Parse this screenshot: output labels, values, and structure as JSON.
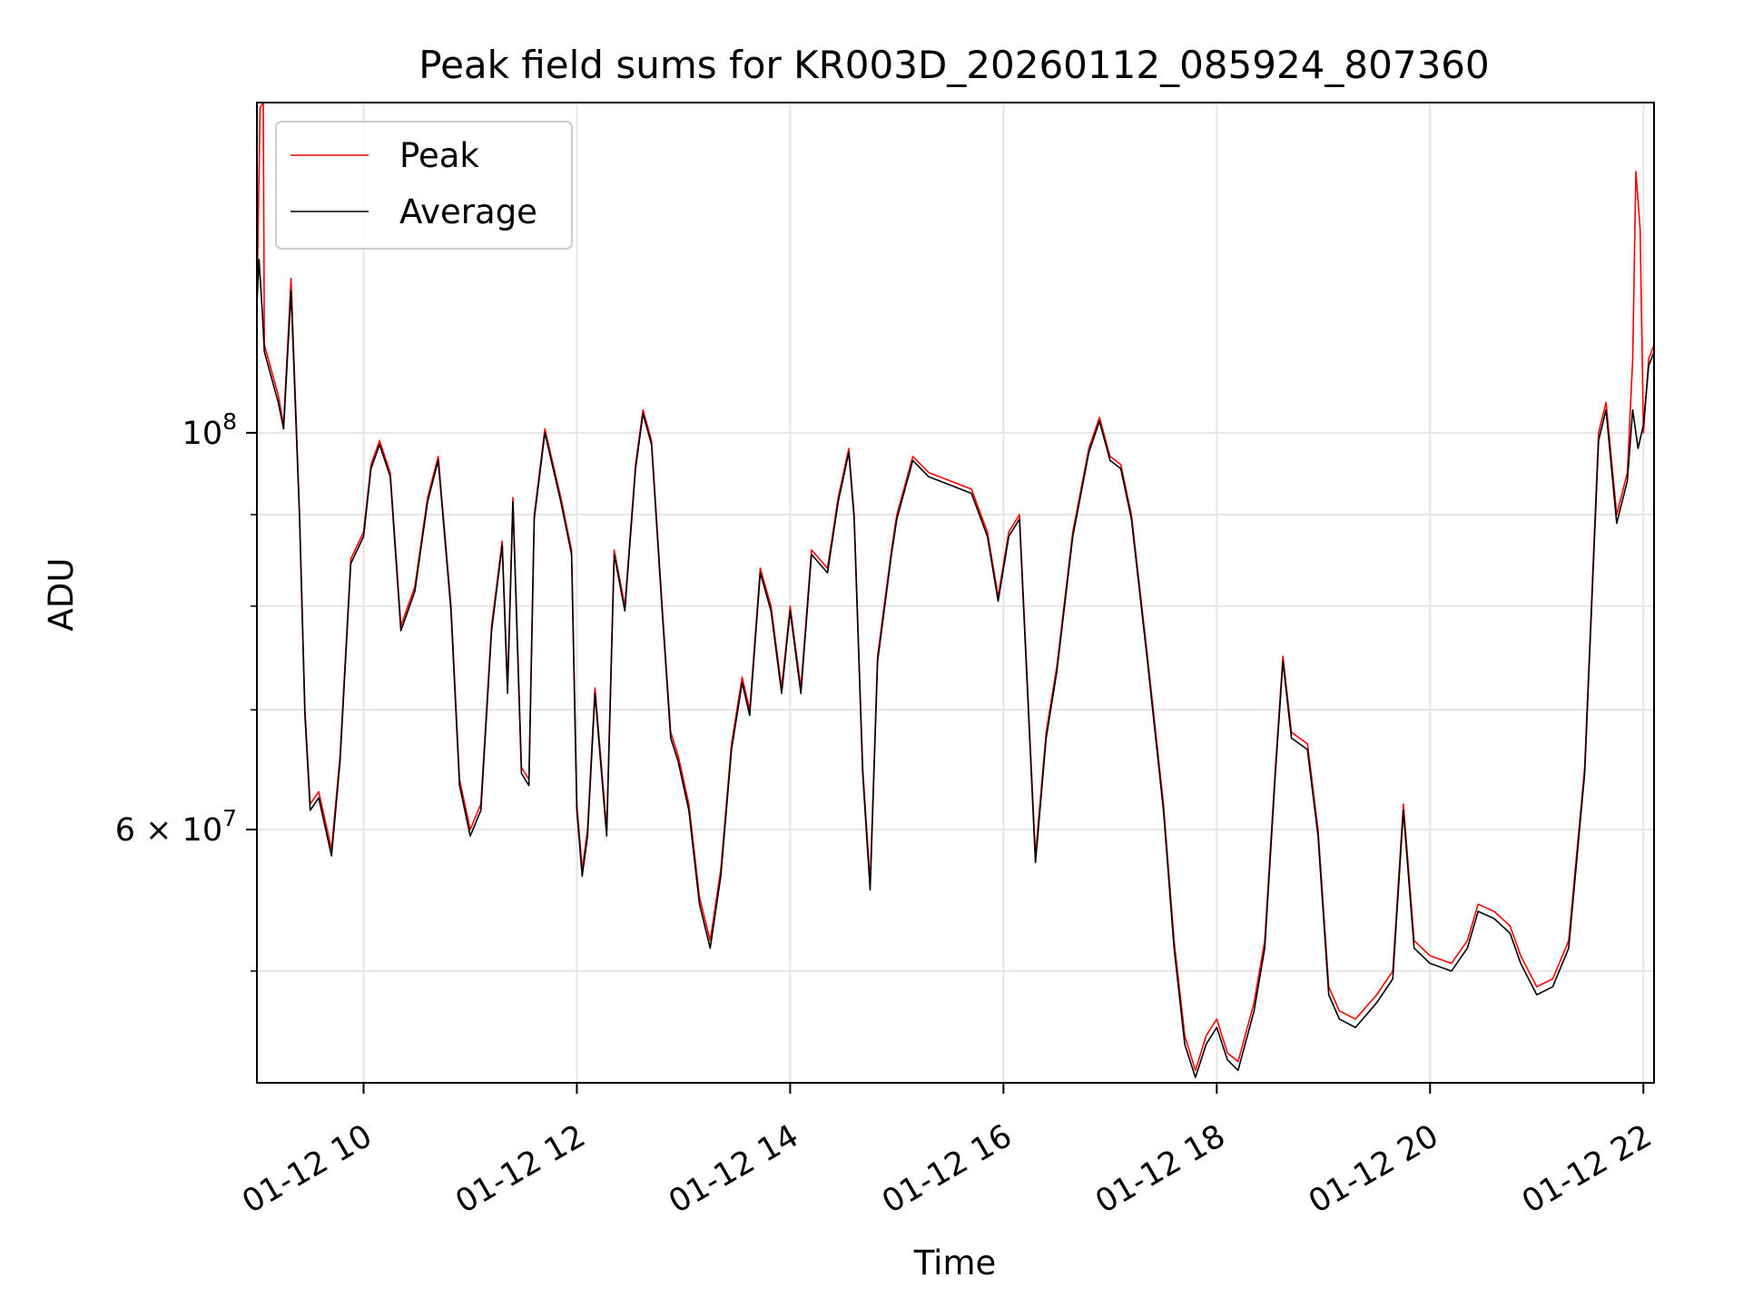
{
  "chart_data": {
    "type": "line",
    "title": "Peak field sums for KR003D_20260112_085924_807360",
    "xlabel": "Time",
    "ylabel": "ADU",
    "xlim_hours": [
      9.0,
      22.1
    ],
    "ylim": [
      43300000,
      153000000
    ],
    "yscale": "log",
    "grid": true,
    "legend_position": "upper-left",
    "x_ticks": [
      {
        "value": 10,
        "label": "01-12 10"
      },
      {
        "value": 12,
        "label": "01-12 12"
      },
      {
        "value": 14,
        "label": "01-12 14"
      },
      {
        "value": 16,
        "label": "01-12 16"
      },
      {
        "value": 18,
        "label": "01-12 18"
      },
      {
        "value": 20,
        "label": "01-12 20"
      },
      {
        "value": 22,
        "label": "01-12 22"
      }
    ],
    "y_major_ticks": [
      {
        "value": 100000000,
        "label_base": "10",
        "label_exp": "8"
      },
      {
        "value": 60000000,
        "label_mant": "6 × 10",
        "label_exp": "7"
      }
    ],
    "y_minor_ticks": [
      50000000,
      70000000,
      80000000,
      90000000
    ],
    "series": [
      {
        "name": "Peak",
        "color": "#ff0000",
        "points": [
          [
            9.0,
            118000000
          ],
          [
            9.03,
            152000000
          ],
          [
            9.06,
            153000000
          ],
          [
            9.07,
            112000000
          ],
          [
            9.2,
            105000000
          ],
          [
            9.25,
            101000000
          ],
          [
            9.32,
            122000000
          ],
          [
            9.4,
            90000000
          ],
          [
            9.45,
            70000000
          ],
          [
            9.5,
            62000000
          ],
          [
            9.58,
            63000000
          ],
          [
            9.7,
            58500000
          ],
          [
            9.78,
            66000000
          ],
          [
            9.88,
            85000000
          ],
          [
            10.0,
            88000000
          ],
          [
            10.07,
            96000000
          ],
          [
            10.15,
            99000000
          ],
          [
            10.25,
            95000000
          ],
          [
            10.35,
            78000000
          ],
          [
            10.48,
            82000000
          ],
          [
            10.6,
            92000000
          ],
          [
            10.7,
            97000000
          ],
          [
            10.82,
            80000000
          ],
          [
            10.9,
            64000000
          ],
          [
            11.0,
            60000000
          ],
          [
            11.1,
            62000000
          ],
          [
            11.2,
            78000000
          ],
          [
            11.3,
            87000000
          ],
          [
            11.35,
            72000000
          ],
          [
            11.4,
            92000000
          ],
          [
            11.48,
            65000000
          ],
          [
            11.55,
            64000000
          ],
          [
            11.6,
            90000000
          ],
          [
            11.7,
            100500000
          ],
          [
            11.85,
            92000000
          ],
          [
            11.95,
            86000000
          ],
          [
            12.0,
            62000000
          ],
          [
            12.05,
            57000000
          ],
          [
            12.1,
            60000000
          ],
          [
            12.17,
            72000000
          ],
          [
            12.28,
            60000000
          ],
          [
            12.35,
            86000000
          ],
          [
            12.45,
            80000000
          ],
          [
            12.55,
            96000000
          ],
          [
            12.62,
            103000000
          ],
          [
            12.7,
            99000000
          ],
          [
            12.8,
            80000000
          ],
          [
            12.88,
            68000000
          ],
          [
            12.95,
            66000000
          ],
          [
            13.05,
            62000000
          ],
          [
            13.15,
            55000000
          ],
          [
            13.25,
            52000000
          ],
          [
            13.35,
            57000000
          ],
          [
            13.45,
            67000000
          ],
          [
            13.55,
            73000000
          ],
          [
            13.62,
            70000000
          ],
          [
            13.72,
            84000000
          ],
          [
            13.82,
            80000000
          ],
          [
            13.92,
            72000000
          ],
          [
            14.0,
            80000000
          ],
          [
            14.1,
            72000000
          ],
          [
            14.2,
            86000000
          ],
          [
            14.35,
            84000000
          ],
          [
            14.45,
            92000000
          ],
          [
            14.55,
            98000000
          ],
          [
            14.6,
            90000000
          ],
          [
            14.68,
            65000000
          ],
          [
            14.75,
            56000000
          ],
          [
            14.82,
            75000000
          ],
          [
            14.95,
            86000000
          ],
          [
            15.0,
            90000000
          ],
          [
            15.15,
            97000000
          ],
          [
            15.3,
            95000000
          ],
          [
            15.5,
            94000000
          ],
          [
            15.7,
            93000000
          ],
          [
            15.85,
            88000000
          ],
          [
            15.95,
            81000000
          ],
          [
            16.05,
            88000000
          ],
          [
            16.15,
            90000000
          ],
          [
            16.3,
            58000000
          ],
          [
            16.4,
            68000000
          ],
          [
            16.5,
            74000000
          ],
          [
            16.65,
            88000000
          ],
          [
            16.8,
            98000000
          ],
          [
            16.9,
            102000000
          ],
          [
            17.0,
            97000000
          ],
          [
            17.1,
            96000000
          ],
          [
            17.2,
            90000000
          ],
          [
            17.35,
            75000000
          ],
          [
            17.5,
            62000000
          ],
          [
            17.6,
            52000000
          ],
          [
            17.7,
            46000000
          ],
          [
            17.8,
            44000000
          ],
          [
            17.9,
            46000000
          ],
          [
            18.0,
            47000000
          ],
          [
            18.1,
            45000000
          ],
          [
            18.2,
            44500000
          ],
          [
            18.35,
            48000000
          ],
          [
            18.45,
            52000000
          ],
          [
            18.55,
            65000000
          ],
          [
            18.62,
            75000000
          ],
          [
            18.7,
            68000000
          ],
          [
            18.85,
            67000000
          ],
          [
            18.95,
            60000000
          ],
          [
            19.05,
            49000000
          ],
          [
            19.15,
            47500000
          ],
          [
            19.3,
            47000000
          ],
          [
            19.5,
            48500000
          ],
          [
            19.65,
            50000000
          ],
          [
            19.75,
            62000000
          ],
          [
            19.85,
            52000000
          ],
          [
            20.0,
            51000000
          ],
          [
            20.2,
            50500000
          ],
          [
            20.35,
            52000000
          ],
          [
            20.45,
            54500000
          ],
          [
            20.6,
            54000000
          ],
          [
            20.75,
            53000000
          ],
          [
            20.85,
            51000000
          ],
          [
            21.0,
            49000000
          ],
          [
            21.15,
            49500000
          ],
          [
            21.3,
            52000000
          ],
          [
            21.45,
            65000000
          ],
          [
            21.58,
            100000000
          ],
          [
            21.65,
            104000000
          ],
          [
            21.75,
            90000000
          ],
          [
            21.85,
            95000000
          ],
          [
            21.9,
            110000000
          ],
          [
            21.93,
            140000000
          ],
          [
            21.97,
            130000000
          ],
          [
            22.0,
            100000000
          ],
          [
            22.05,
            110000000
          ],
          [
            22.1,
            112000000
          ]
        ]
      },
      {
        "name": "Average",
        "color": "#000000",
        "points": [
          [
            9.0,
            118000000
          ],
          [
            9.02,
            125000000
          ],
          [
            9.05,
            117000000
          ],
          [
            9.07,
            111000000
          ],
          [
            9.2,
            104000000
          ],
          [
            9.25,
            100500000
          ],
          [
            9.32,
            120000000
          ],
          [
            9.4,
            89500000
          ],
          [
            9.45,
            69500000
          ],
          [
            9.5,
            61500000
          ],
          [
            9.58,
            62500000
          ],
          [
            9.7,
            58000000
          ],
          [
            9.78,
            65500000
          ],
          [
            9.88,
            84500000
          ],
          [
            10.0,
            87500000
          ],
          [
            10.07,
            95500000
          ],
          [
            10.15,
            98500000
          ],
          [
            10.25,
            94500000
          ],
          [
            10.35,
            77500000
          ],
          [
            10.48,
            81500000
          ],
          [
            10.6,
            91500000
          ],
          [
            10.7,
            96500000
          ],
          [
            10.82,
            79500000
          ],
          [
            10.9,
            63500000
          ],
          [
            11.0,
            59500000
          ],
          [
            11.1,
            61500000
          ],
          [
            11.2,
            77500000
          ],
          [
            11.3,
            86500000
          ],
          [
            11.35,
            71500000
          ],
          [
            11.4,
            91500000
          ],
          [
            11.48,
            64500000
          ],
          [
            11.55,
            63500000
          ],
          [
            11.6,
            89500000
          ],
          [
            11.7,
            100000000
          ],
          [
            11.85,
            91500000
          ],
          [
            11.95,
            85500000
          ],
          [
            12.0,
            61500000
          ],
          [
            12.05,
            56500000
          ],
          [
            12.1,
            59500000
          ],
          [
            12.17,
            71500000
          ],
          [
            12.28,
            59500000
          ],
          [
            12.35,
            85500000
          ],
          [
            12.45,
            79500000
          ],
          [
            12.55,
            95500000
          ],
          [
            12.62,
            102500000
          ],
          [
            12.7,
            98500000
          ],
          [
            12.8,
            79500000
          ],
          [
            12.88,
            67500000
          ],
          [
            12.95,
            65500000
          ],
          [
            13.05,
            61500000
          ],
          [
            13.15,
            54500000
          ],
          [
            13.25,
            51500000
          ],
          [
            13.35,
            56500000
          ],
          [
            13.45,
            66500000
          ],
          [
            13.55,
            72500000
          ],
          [
            13.62,
            69500000
          ],
          [
            13.72,
            83500000
          ],
          [
            13.82,
            79500000
          ],
          [
            13.92,
            71500000
          ],
          [
            14.0,
            79500000
          ],
          [
            14.1,
            71500000
          ],
          [
            14.2,
            85500000
          ],
          [
            14.35,
            83500000
          ],
          [
            14.45,
            91500000
          ],
          [
            14.55,
            97500000
          ],
          [
            14.6,
            89500000
          ],
          [
            14.68,
            64500000
          ],
          [
            14.75,
            55500000
          ],
          [
            14.82,
            74500000
          ],
          [
            14.95,
            85500000
          ],
          [
            15.0,
            89500000
          ],
          [
            15.15,
            96500000
          ],
          [
            15.3,
            94500000
          ],
          [
            15.5,
            93500000
          ],
          [
            15.7,
            92500000
          ],
          [
            15.85,
            87500000
          ],
          [
            15.95,
            80500000
          ],
          [
            16.05,
            87500000
          ],
          [
            16.15,
            89500000
          ],
          [
            16.3,
            57500000
          ],
          [
            16.4,
            67500000
          ],
          [
            16.5,
            73500000
          ],
          [
            16.65,
            87500000
          ],
          [
            16.8,
            97500000
          ],
          [
            16.9,
            101500000
          ],
          [
            17.0,
            96500000
          ],
          [
            17.1,
            95500000
          ],
          [
            17.2,
            89500000
          ],
          [
            17.35,
            74500000
          ],
          [
            17.5,
            61500000
          ],
          [
            17.6,
            51500000
          ],
          [
            17.7,
            45500000
          ],
          [
            17.8,
            43600000
          ],
          [
            17.9,
            45500000
          ],
          [
            18.0,
            46500000
          ],
          [
            18.1,
            44600000
          ],
          [
            18.2,
            44000000
          ],
          [
            18.35,
            47500000
          ],
          [
            18.45,
            51500000
          ],
          [
            18.55,
            64500000
          ],
          [
            18.62,
            74500000
          ],
          [
            18.7,
            67500000
          ],
          [
            18.85,
            66500000
          ],
          [
            18.95,
            59500000
          ],
          [
            19.05,
            48500000
          ],
          [
            19.15,
            47000000
          ],
          [
            19.3,
            46500000
          ],
          [
            19.5,
            48000000
          ],
          [
            19.65,
            49500000
          ],
          [
            19.75,
            61500000
          ],
          [
            19.85,
            51500000
          ],
          [
            20.0,
            50500000
          ],
          [
            20.2,
            50000000
          ],
          [
            20.35,
            51500000
          ],
          [
            20.45,
            54000000
          ],
          [
            20.6,
            53500000
          ],
          [
            20.75,
            52500000
          ],
          [
            20.85,
            50500000
          ],
          [
            21.0,
            48500000
          ],
          [
            21.15,
            49000000
          ],
          [
            21.3,
            51500000
          ],
          [
            21.45,
            64500000
          ],
          [
            21.58,
            99000000
          ],
          [
            21.65,
            103000000
          ],
          [
            21.75,
            89000000
          ],
          [
            21.85,
            94000000
          ],
          [
            21.9,
            103000000
          ],
          [
            21.95,
            98000000
          ],
          [
            22.0,
            101000000
          ],
          [
            22.05,
            109000000
          ],
          [
            22.1,
            111000000
          ]
        ]
      }
    ]
  }
}
